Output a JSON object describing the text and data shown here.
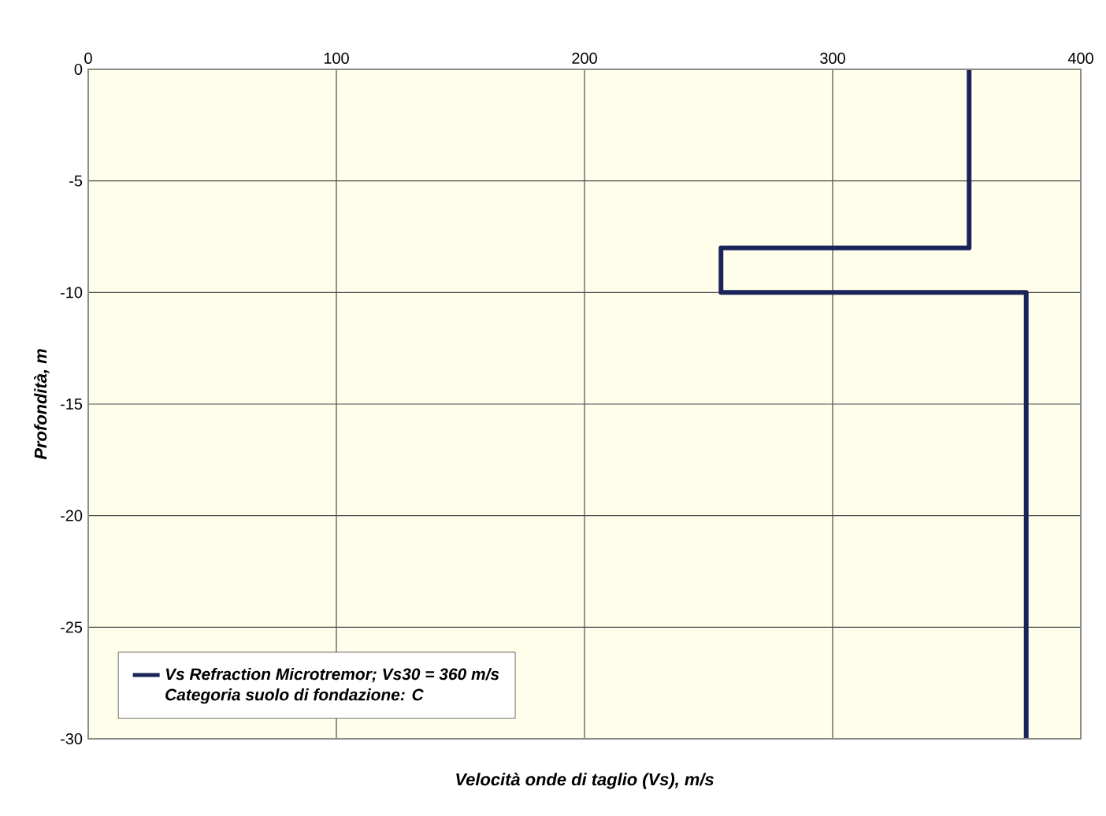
{
  "chart_data": {
    "type": "line",
    "xlabel": "Velocità onde di taglio (Vs), m/s",
    "ylabel": "Profondità, m",
    "series": [
      {
        "name": "Vs Refraction Microtremor;  Vs30 = 360 m/s",
        "color": "#1b2459",
        "x": [
          355,
          355,
          255,
          255,
          378,
          378
        ],
        "values": [
          0,
          -8,
          -8,
          -10,
          -10,
          -30
        ]
      }
    ],
    "annotations": [
      "Categoria suolo di fondazione: C"
    ],
    "xlim": [
      0,
      400
    ],
    "xticks": [
      0,
      100,
      200,
      300,
      400
    ],
    "ylim": [
      -30,
      0
    ],
    "yticks": [
      -30,
      -25,
      -20,
      -15,
      -10,
      -5,
      0
    ],
    "grid": true,
    "legend": "bottom left",
    "marker": "none",
    "line_style": "solid"
  }
}
